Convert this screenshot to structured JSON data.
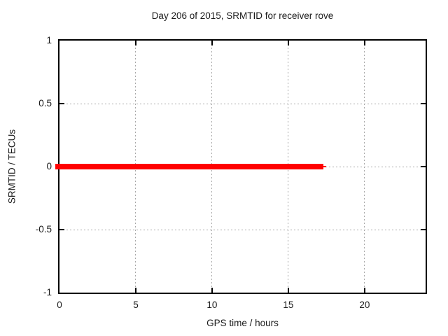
{
  "chart_data": {
    "type": "line",
    "title": "Day 206 of 2015, SRMTID for receiver rove",
    "xlabel": "GPS time / hours",
    "ylabel": "SRMTID / TECUs",
    "xlim": [
      0,
      24
    ],
    "ylim": [
      -1,
      1
    ],
    "x_ticks": [
      0,
      5,
      10,
      15,
      20
    ],
    "x_tick_labels": [
      "0",
      "5",
      "10",
      "15",
      "20"
    ],
    "y_ticks": [
      -1,
      -0.5,
      0,
      0.5,
      1
    ],
    "y_tick_labels": [
      "-1",
      "-0.5",
      "0",
      "0.5",
      "1"
    ],
    "grid": true,
    "grid_color": "#a8a8a8",
    "border_color": "#000000",
    "background_color": "#ffffff",
    "legend": "none",
    "series": [
      {
        "name": "SRMTID",
        "color": "#ff0000",
        "line_thickness_px": 8,
        "x_start": 0,
        "x_end": 17.3,
        "thin_tail_x_end": 17.5,
        "y_value": 0,
        "description": "SRMTID is constant at 0 TECUs from GPS hour 0 to about hour 17.3; no data afterwards"
      }
    ]
  }
}
